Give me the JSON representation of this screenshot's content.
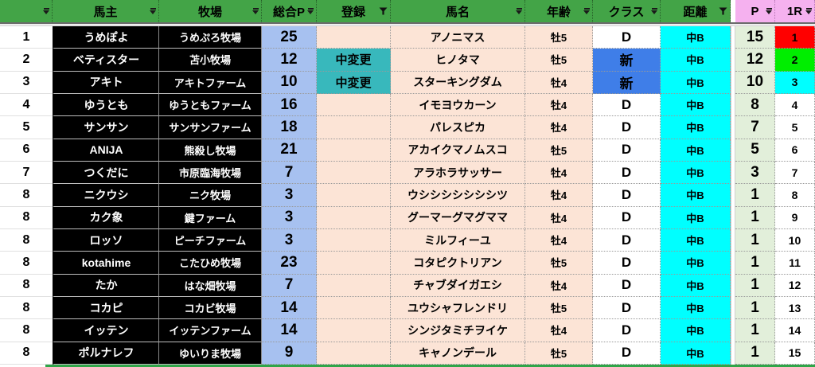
{
  "table": {
    "columns": [
      {
        "key": "rank",
        "label": "",
        "filter": "dropdown",
        "header_bg": "green"
      },
      {
        "key": "owner",
        "label": "馬主",
        "filter": "dropdown",
        "header_bg": "green"
      },
      {
        "key": "farm",
        "label": "牧場",
        "filter": "dropdown",
        "header_bg": "green"
      },
      {
        "key": "total_p",
        "label": "総合P",
        "filter": "dropdown",
        "header_bg": "green"
      },
      {
        "key": "registration",
        "label": "登録",
        "filter": "funnel",
        "header_bg": "green"
      },
      {
        "key": "horse_name",
        "label": "馬名",
        "filter": "dropdown",
        "header_bg": "green"
      },
      {
        "key": "age",
        "label": "年齢",
        "filter": "dropdown",
        "header_bg": "green"
      },
      {
        "key": "class",
        "label": "クラス",
        "filter": "dropdown",
        "header_bg": "green"
      },
      {
        "key": "distance",
        "label": "距離",
        "filter": "funnel",
        "header_bg": "green"
      },
      {
        "key": "gap",
        "label": "",
        "filter": "none",
        "header_bg": "gap"
      },
      {
        "key": "p",
        "label": "P",
        "filter": "dropdown",
        "header_bg": "pink"
      },
      {
        "key": "r1",
        "label": "1R",
        "filter": "dropdown",
        "header_bg": "pink"
      }
    ],
    "rows": [
      {
        "rank": "1",
        "owner": "うめぽよ",
        "farm": "うめぷろ牧場",
        "total_p": "25",
        "registration": "",
        "horse_name": "アノニマス",
        "age": "牡5",
        "class": "D",
        "class_bg": "#FFFFFF",
        "distance": "中B",
        "p": "15",
        "r1": "1",
        "r1_bg": "#FF0000"
      },
      {
        "rank": "2",
        "owner": "ベティスター",
        "farm": "苫小牧場",
        "total_p": "12",
        "registration": "中変更",
        "horse_name": "ヒノタマ",
        "age": "牡5",
        "class": "新",
        "class_bg": "#3F7EE8",
        "distance": "中B",
        "p": "12",
        "r1": "2",
        "r1_bg": "#00EE00"
      },
      {
        "rank": "3",
        "owner": "アキト",
        "farm": "アキトファーム",
        "total_p": "10",
        "registration": "中変更",
        "horse_name": "スターキングダム",
        "age": "牡4",
        "class": "新",
        "class_bg": "#3F7EE8",
        "distance": "中B",
        "p": "10",
        "r1": "3",
        "r1_bg": "#00FFFF"
      },
      {
        "rank": "4",
        "owner": "ゆうとも",
        "farm": "ゆうともファーム",
        "total_p": "16",
        "registration": "",
        "horse_name": "イモヨウカーン",
        "age": "牡4",
        "class": "D",
        "class_bg": "#FFFFFF",
        "distance": "中B",
        "p": "8",
        "r1": "4",
        "r1_bg": "#FFFFFF"
      },
      {
        "rank": "5",
        "owner": "サンサン",
        "farm": "サンサンファーム",
        "total_p": "18",
        "registration": "",
        "horse_name": "パレスピカ",
        "age": "牡4",
        "class": "D",
        "class_bg": "#FFFFFF",
        "distance": "中B",
        "p": "7",
        "r1": "5",
        "r1_bg": "#FFFFFF"
      },
      {
        "rank": "6",
        "owner": "ANIJA",
        "farm": "熊殺し牧場",
        "total_p": "21",
        "registration": "",
        "horse_name": "アカイクマノムスコ",
        "age": "牡5",
        "class": "D",
        "class_bg": "#FFFFFF",
        "distance": "中B",
        "p": "5",
        "r1": "6",
        "r1_bg": "#FFFFFF"
      },
      {
        "rank": "7",
        "owner": "つくだに",
        "farm": "市原臨海牧場",
        "total_p": "7",
        "registration": "",
        "horse_name": "アラホラサッサー",
        "age": "牡4",
        "class": "D",
        "class_bg": "#FFFFFF",
        "distance": "中B",
        "p": "3",
        "r1": "7",
        "r1_bg": "#FFFFFF"
      },
      {
        "rank": "8",
        "owner": "ニクウシ",
        "farm": "ニク牧場",
        "total_p": "3",
        "registration": "",
        "horse_name": "ウシシシシシシシツ",
        "age": "牡4",
        "class": "D",
        "class_bg": "#FFFFFF",
        "distance": "中B",
        "p": "1",
        "r1": "8",
        "r1_bg": "#FFFFFF"
      },
      {
        "rank": "8",
        "owner": "カク象",
        "farm": "鍵ファーム",
        "total_p": "3",
        "registration": "",
        "horse_name": "グーマーグマグママ",
        "age": "牡4",
        "class": "D",
        "class_bg": "#FFFFFF",
        "distance": "中B",
        "p": "1",
        "r1": "9",
        "r1_bg": "#FFFFFF"
      },
      {
        "rank": "8",
        "owner": "ロッソ",
        "farm": "ピーチファーム",
        "total_p": "3",
        "registration": "",
        "horse_name": "ミルフィーユ",
        "age": "牡4",
        "class": "D",
        "class_bg": "#FFFFFF",
        "distance": "中B",
        "p": "1",
        "r1": "10",
        "r1_bg": "#FFFFFF"
      },
      {
        "rank": "8",
        "owner": "kotahime",
        "farm": "こたひめ牧場",
        "total_p": "23",
        "registration": "",
        "horse_name": "コタピクトリアン",
        "age": "牡5",
        "class": "D",
        "class_bg": "#FFFFFF",
        "distance": "中B",
        "p": "1",
        "r1": "11",
        "r1_bg": "#FFFFFF"
      },
      {
        "rank": "8",
        "owner": "たか",
        "farm": "はな畑牧場",
        "total_p": "7",
        "registration": "",
        "horse_name": "チャブダイガエシ",
        "age": "牡4",
        "class": "D",
        "class_bg": "#FFFFFF",
        "distance": "中B",
        "p": "1",
        "r1": "12",
        "r1_bg": "#FFFFFF"
      },
      {
        "rank": "8",
        "owner": "コカピ",
        "farm": "コカビ牧場",
        "total_p": "14",
        "registration": "",
        "horse_name": "ユウシャフレンドリ",
        "age": "牡5",
        "class": "D",
        "class_bg": "#FFFFFF",
        "distance": "中B",
        "p": "1",
        "r1": "13",
        "r1_bg": "#FFFFFF"
      },
      {
        "rank": "8",
        "owner": "イッテン",
        "farm": "イッテンファーム",
        "total_p": "14",
        "registration": "",
        "horse_name": "シンジタミチヲイケ",
        "age": "牡4",
        "class": "D",
        "class_bg": "#FFFFFF",
        "distance": "中B",
        "p": "1",
        "r1": "14",
        "r1_bg": "#FFFFFF"
      },
      {
        "rank": "8",
        "owner": "ポルナレフ",
        "farm": "ゆいりま牧場",
        "total_p": "9",
        "registration": "",
        "horse_name": "キャノンデール",
        "age": "牡5",
        "class": "D",
        "class_bg": "#FFFFFF",
        "distance": "中B",
        "p": "1",
        "r1": "15",
        "r1_bg": "#FFFFFF"
      }
    ]
  },
  "icons": {
    "dropdown": "filter-dropdown-icon",
    "funnel": "filter-funnel-icon"
  },
  "colors": {
    "header-green": "#43A447",
    "header-pink": "#F5B1EF",
    "row-black": "#000000",
    "total-blue": "#A7C1F0",
    "peach": "#FCE4D6",
    "teal": "#38B8BC",
    "new-blue": "#3F7EE8",
    "dist-cyan": "#00FFFF",
    "p-green": "#E2EFDA",
    "r1-red": "#FF0000",
    "r1-bright-green": "#00EE00",
    "r1-cyan": "#00FFFF",
    "bottom-green": "#2FA548"
  }
}
